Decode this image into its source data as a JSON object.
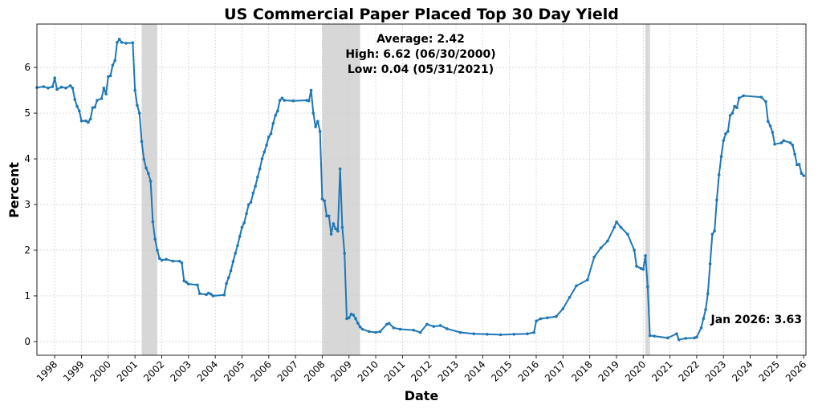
{
  "chart_data": {
    "type": "line",
    "title": "US Commercial Paper Placed Top 30 Day Yield",
    "xlabel": "Date",
    "ylabel": "Percent",
    "ylim": [
      -0.3,
      6.95
    ],
    "xlim": [
      "1997-05",
      "2026-02"
    ],
    "grid": true,
    "line_color": "#1f77b4",
    "recession_color": "#d3d3d3",
    "y_ticks": [
      "0",
      "1",
      "2",
      "3",
      "4",
      "5",
      "6"
    ],
    "x_ticks": [
      "1998",
      "1999",
      "2000",
      "2001",
      "2002",
      "2003",
      "2004",
      "2005",
      "2006",
      "2007",
      "2008",
      "2009",
      "2010",
      "2011",
      "2012",
      "2013",
      "2014",
      "2015",
      "2016",
      "2017",
      "2018",
      "2019",
      "2020",
      "2021",
      "2022",
      "2023",
      "2024",
      "2025",
      "2026"
    ],
    "recessions": [
      [
        "2001-04",
        "2001-11"
      ],
      [
        "2008-01",
        "2009-06"
      ],
      [
        "2020-02",
        "2020-04"
      ]
    ],
    "annotations": {
      "average": "Average: 2.42",
      "high": "High: 6.62 (06/30/2000)",
      "low": "Low: 0.04 (05/31/2021)",
      "latest": "Jan 2026: 3.63"
    },
    "series": [
      {
        "points": [
          [
            "1997-05",
            5.56
          ],
          [
            "1997-08",
            5.58
          ],
          [
            "1997-10",
            5.55
          ],
          [
            "1997-12",
            5.58
          ],
          [
            "1998-01",
            5.77
          ],
          [
            "1998-02",
            5.52
          ],
          [
            "1998-04",
            5.57
          ],
          [
            "1998-06",
            5.55
          ],
          [
            "1998-08",
            5.6
          ],
          [
            "1998-09",
            5.55
          ],
          [
            "1998-10",
            5.3
          ],
          [
            "1998-11",
            5.15
          ],
          [
            "1998-12",
            5.05
          ],
          [
            "1999-01",
            4.83
          ],
          [
            "1999-03",
            4.83
          ],
          [
            "1999-04",
            4.8
          ],
          [
            "1999-05",
            4.87
          ],
          [
            "1999-06",
            5.12
          ],
          [
            "1999-07",
            5.13
          ],
          [
            "1999-08",
            5.28
          ],
          [
            "1999-10",
            5.32
          ],
          [
            "1999-11",
            5.55
          ],
          [
            "1999-12",
            5.42
          ],
          [
            "2000-01",
            5.8
          ],
          [
            "2000-02",
            5.82
          ],
          [
            "2000-03",
            6.05
          ],
          [
            "2000-04",
            6.15
          ],
          [
            "2000-05",
            6.55
          ],
          [
            "2000-06",
            6.62
          ],
          [
            "2000-07",
            6.55
          ],
          [
            "2000-09",
            6.53
          ],
          [
            "2000-12",
            6.54
          ],
          [
            "2001-01",
            5.5
          ],
          [
            "2001-02",
            5.17
          ],
          [
            "2001-03",
            5.0
          ],
          [
            "2001-04",
            4.38
          ],
          [
            "2001-05",
            3.99
          ],
          [
            "2001-06",
            3.8
          ],
          [
            "2001-07",
            3.68
          ],
          [
            "2001-08",
            3.51
          ],
          [
            "2001-09",
            2.62
          ],
          [
            "2001-10",
            2.24
          ],
          [
            "2001-11",
            2.0
          ],
          [
            "2001-12",
            1.82
          ],
          [
            "2002-01",
            1.78
          ],
          [
            "2002-03",
            1.8
          ],
          [
            "2002-06",
            1.76
          ],
          [
            "2002-09",
            1.76
          ],
          [
            "2002-10",
            1.72
          ],
          [
            "2002-11",
            1.33
          ],
          [
            "2002-12",
            1.3
          ],
          [
            "2003-01",
            1.26
          ],
          [
            "2003-05",
            1.24
          ],
          [
            "2003-06",
            1.05
          ],
          [
            "2003-09",
            1.03
          ],
          [
            "2003-10",
            1.06
          ],
          [
            "2003-11",
            1.04
          ],
          [
            "2003-12",
            1.0
          ],
          [
            "2004-05",
            1.02
          ],
          [
            "2004-06",
            1.27
          ],
          [
            "2004-07",
            1.4
          ],
          [
            "2004-08",
            1.55
          ],
          [
            "2004-09",
            1.75
          ],
          [
            "2004-10",
            1.93
          ],
          [
            "2004-11",
            2.1
          ],
          [
            "2004-12",
            2.3
          ],
          [
            "2005-01",
            2.5
          ],
          [
            "2005-02",
            2.6
          ],
          [
            "2005-03",
            2.8
          ],
          [
            "2005-04",
            3.0
          ],
          [
            "2005-05",
            3.05
          ],
          [
            "2005-06",
            3.25
          ],
          [
            "2005-07",
            3.4
          ],
          [
            "2005-08",
            3.6
          ],
          [
            "2005-09",
            3.78
          ],
          [
            "2005-10",
            4.0
          ],
          [
            "2005-11",
            4.15
          ],
          [
            "2005-12",
            4.3
          ],
          [
            "2006-01",
            4.48
          ],
          [
            "2006-02",
            4.55
          ],
          [
            "2006-03",
            4.78
          ],
          [
            "2006-04",
            4.95
          ],
          [
            "2006-05",
            5.05
          ],
          [
            "2006-06",
            5.28
          ],
          [
            "2006-07",
            5.33
          ],
          [
            "2006-08",
            5.28
          ],
          [
            "2006-12",
            5.27
          ],
          [
            "2007-06",
            5.28
          ],
          [
            "2007-07",
            5.27
          ],
          [
            "2007-08",
            5.5
          ],
          [
            "2007-09",
            5.0
          ],
          [
            "2007-10",
            4.7
          ],
          [
            "2007-11",
            4.82
          ],
          [
            "2007-12",
            4.6
          ],
          [
            "2008-01",
            3.12
          ],
          [
            "2008-02",
            3.08
          ],
          [
            "2008-03",
            2.75
          ],
          [
            "2008-04",
            2.75
          ],
          [
            "2008-05",
            2.35
          ],
          [
            "2008-06",
            2.58
          ],
          [
            "2008-07",
            2.47
          ],
          [
            "2008-08",
            2.42
          ],
          [
            "2008-09",
            3.78
          ],
          [
            "2008-10",
            2.5
          ],
          [
            "2008-11",
            1.93
          ],
          [
            "2008-12",
            0.5
          ],
          [
            "2009-01",
            0.52
          ],
          [
            "2009-02",
            0.6
          ],
          [
            "2009-03",
            0.58
          ],
          [
            "2009-04",
            0.5
          ],
          [
            "2009-05",
            0.4
          ],
          [
            "2009-06",
            0.32
          ],
          [
            "2009-07",
            0.27
          ],
          [
            "2009-10",
            0.22
          ],
          [
            "2010-01",
            0.2
          ],
          [
            "2010-03",
            0.22
          ],
          [
            "2010-06",
            0.38
          ],
          [
            "2010-07",
            0.4
          ],
          [
            "2010-09",
            0.3
          ],
          [
            "2010-12",
            0.27
          ],
          [
            "2011-06",
            0.25
          ],
          [
            "2011-09",
            0.2
          ],
          [
            "2011-12",
            0.38
          ],
          [
            "2012-03",
            0.33
          ],
          [
            "2012-06",
            0.35
          ],
          [
            "2012-09",
            0.28
          ],
          [
            "2013-03",
            0.2
          ],
          [
            "2013-09",
            0.17
          ],
          [
            "2014-03",
            0.16
          ],
          [
            "2014-09",
            0.15
          ],
          [
            "2015-03",
            0.16
          ],
          [
            "2015-09",
            0.17
          ],
          [
            "2015-12",
            0.2
          ],
          [
            "2016-01",
            0.45
          ],
          [
            "2016-03",
            0.5
          ],
          [
            "2016-06",
            0.52
          ],
          [
            "2016-10",
            0.55
          ],
          [
            "2017-01",
            0.72
          ],
          [
            "2017-04",
            0.97
          ],
          [
            "2017-07",
            1.22
          ],
          [
            "2017-12",
            1.35
          ],
          [
            "2018-03",
            1.85
          ],
          [
            "2018-06",
            2.05
          ],
          [
            "2018-09",
            2.2
          ],
          [
            "2018-12",
            2.5
          ],
          [
            "2019-01",
            2.62
          ],
          [
            "2019-03",
            2.5
          ],
          [
            "2019-06",
            2.35
          ],
          [
            "2019-09",
            2.0
          ],
          [
            "2019-10",
            1.65
          ],
          [
            "2019-12",
            1.6
          ],
          [
            "2020-01",
            1.58
          ],
          [
            "2020-02",
            1.88
          ],
          [
            "2020-03",
            1.2
          ],
          [
            "2020-04",
            0.13
          ],
          [
            "2020-06",
            0.12
          ],
          [
            "2020-12",
            0.08
          ],
          [
            "2021-04",
            0.17
          ],
          [
            "2021-05",
            0.04
          ],
          [
            "2021-08",
            0.07
          ],
          [
            "2021-12",
            0.08
          ],
          [
            "2022-01",
            0.1
          ],
          [
            "2022-03",
            0.3
          ],
          [
            "2022-04",
            0.5
          ],
          [
            "2022-05",
            0.7
          ],
          [
            "2022-06",
            1.05
          ],
          [
            "2022-07",
            1.7
          ],
          [
            "2022-08",
            2.35
          ],
          [
            "2022-09",
            2.42
          ],
          [
            "2022-10",
            3.1
          ],
          [
            "2022-11",
            3.65
          ],
          [
            "2022-12",
            4.05
          ],
          [
            "2023-01",
            4.4
          ],
          [
            "2023-02",
            4.55
          ],
          [
            "2023-03",
            4.6
          ],
          [
            "2023-04",
            4.95
          ],
          [
            "2023-05",
            5.0
          ],
          [
            "2023-06",
            5.15
          ],
          [
            "2023-07",
            5.12
          ],
          [
            "2023-08",
            5.33
          ],
          [
            "2023-10",
            5.38
          ],
          [
            "2024-06",
            5.35
          ],
          [
            "2024-08",
            5.25
          ],
          [
            "2024-09",
            4.82
          ],
          [
            "2024-10",
            4.72
          ],
          [
            "2024-11",
            4.58
          ],
          [
            "2024-12",
            4.32
          ],
          [
            "2025-03",
            4.35
          ],
          [
            "2025-04",
            4.4
          ],
          [
            "2025-07",
            4.35
          ],
          [
            "2025-08",
            4.3
          ],
          [
            "2025-09",
            4.1
          ],
          [
            "2025-10",
            3.87
          ],
          [
            "2025-11",
            3.88
          ],
          [
            "2025-12",
            3.68
          ],
          [
            "2026-01",
            3.63
          ]
        ]
      }
    ]
  }
}
